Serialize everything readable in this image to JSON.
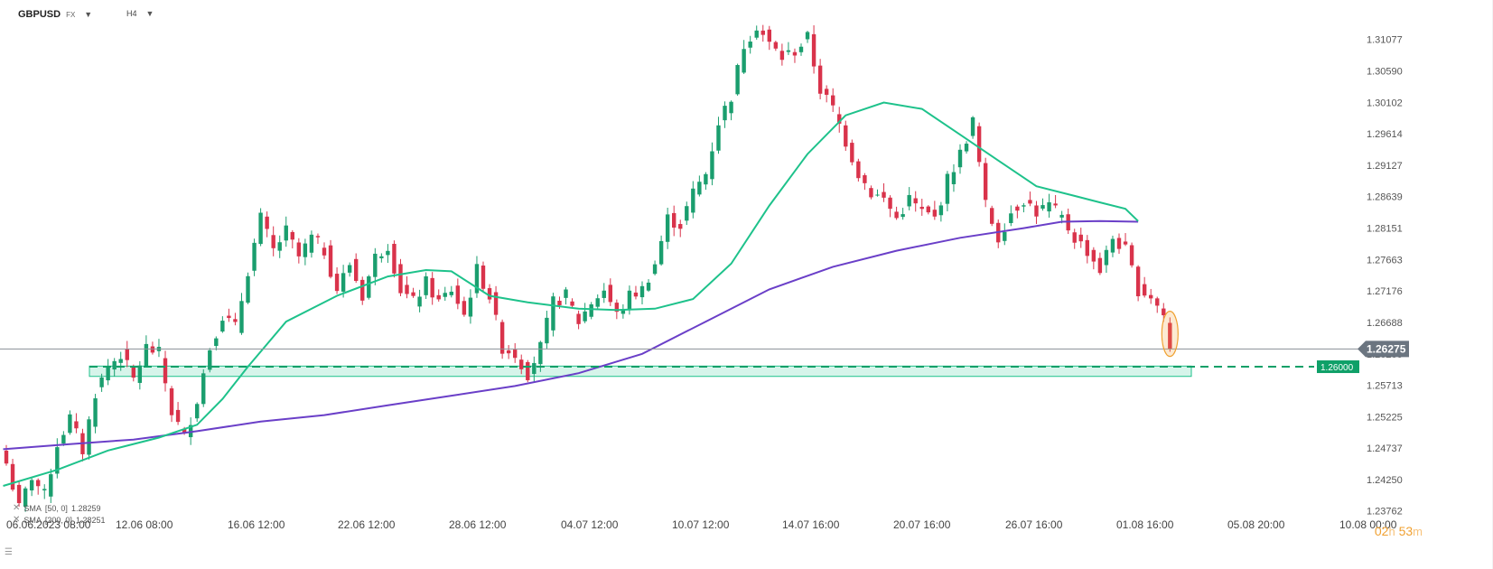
{
  "header": {
    "symbol": "GBPUSD",
    "symbol_type": "FX",
    "timeframe": "H4"
  },
  "indicators": [
    {
      "label": "SMA",
      "params": "[50, 0]",
      "value": "1.28259",
      "color": "#1ec28b"
    },
    {
      "label": "SMA",
      "params": "[200, 0]",
      "value": "1.28251",
      "color": "#6a3fc8"
    }
  ],
  "timer": {
    "hours": "02",
    "h_unit": "h",
    "minutes": "53",
    "m_unit": "m"
  },
  "colors": {
    "up": "#1a9e6e",
    "down": "#d9334b",
    "sma50": "#1ec28b",
    "sma200": "#6a3fc8",
    "zone": "#1ec28b",
    "price_tag": "#6b7580",
    "level_tag": "#0fa068",
    "highlight": "#f0a030"
  },
  "chart_data": {
    "type": "candlestick",
    "ylim": [
      1.2352,
      1.3162
    ],
    "y_ticks": [
      "1.31077",
      "1.30590",
      "1.30102",
      "1.29614",
      "1.29127",
      "1.28639",
      "1.28151",
      "1.27663",
      "1.27176",
      "1.26688",
      "1.26200",
      "1.25713",
      "1.25225",
      "1.24737",
      "1.24250",
      "1.23762"
    ],
    "x_ticks": [
      "06.06.2023  08:00",
      "12.06  08:00",
      "16.06  12:00",
      "22.06  12:00",
      "28.06  12:00",
      "04.07  12:00",
      "10.07  12:00",
      "14.07  16:00",
      "20.07  16:00",
      "26.07  16:00",
      "01.08  16:00",
      "05.08  20:00",
      "10.08  00:00"
    ],
    "current_price": "1.26275",
    "level_price": "1.26000",
    "support_zone": [
      1.2585,
      1.2601
    ],
    "sma50_value": "1.28259",
    "sma200_value": "1.28251",
    "anchors": [
      [
        0,
        1.245
      ],
      [
        2,
        1.238
      ],
      [
        4,
        1.243
      ],
      [
        6,
        1.24
      ],
      [
        8,
        1.248
      ],
      [
        10,
        1.252
      ],
      [
        12,
        1.247
      ],
      [
        14,
        1.256
      ],
      [
        16,
        1.26
      ],
      [
        18,
        1.262
      ],
      [
        20,
        1.258
      ],
      [
        22,
        1.263
      ],
      [
        24,
        1.262
      ],
      [
        26,
        1.253
      ],
      [
        28,
        1.249
      ],
      [
        30,
        1.255
      ],
      [
        32,
        1.263
      ],
      [
        34,
        1.268
      ],
      [
        36,
        1.266
      ],
      [
        38,
        1.275
      ],
      [
        40,
        1.283
      ],
      [
        42,
        1.278
      ],
      [
        44,
        1.281
      ],
      [
        46,
        1.277
      ],
      [
        48,
        1.28
      ],
      [
        50,
        1.278
      ],
      [
        52,
        1.272
      ],
      [
        54,
        1.276
      ],
      [
        56,
        1.271
      ],
      [
        58,
        1.277
      ],
      [
        60,
        1.279
      ],
      [
        62,
        1.272
      ],
      [
        64,
        1.27
      ],
      [
        66,
        1.273
      ],
      [
        68,
        1.27
      ],
      [
        70,
        1.272
      ],
      [
        72,
        1.268
      ],
      [
        74,
        1.275
      ],
      [
        76,
        1.271
      ],
      [
        78,
        1.263
      ],
      [
        80,
        1.262
      ],
      [
        82,
        1.259
      ],
      [
        84,
        1.263
      ],
      [
        86,
        1.27
      ],
      [
        88,
        1.271
      ],
      [
        90,
        1.267
      ],
      [
        92,
        1.27
      ],
      [
        94,
        1.272
      ],
      [
        96,
        1.268
      ],
      [
        98,
        1.271
      ],
      [
        100,
        1.272
      ],
      [
        102,
        1.276
      ],
      [
        104,
        1.283
      ],
      [
        106,
        1.282
      ],
      [
        108,
        1.287
      ],
      [
        110,
        1.29
      ],
      [
        112,
        1.298
      ],
      [
        114,
        1.302
      ],
      [
        116,
        1.31
      ],
      [
        118,
        1.313
      ],
      [
        120,
        1.31
      ],
      [
        122,
        1.308
      ],
      [
        124,
        1.309
      ],
      [
        126,
        1.311
      ],
      [
        128,
        1.303
      ],
      [
        130,
        1.3
      ],
      [
        132,
        1.295
      ],
      [
        134,
        1.29
      ],
      [
        136,
        1.287
      ],
      [
        138,
        1.286
      ],
      [
        140,
        1.283
      ],
      [
        142,
        1.286
      ],
      [
        144,
        1.284
      ],
      [
        146,
        1.283
      ],
      [
        148,
        1.289
      ],
      [
        150,
        1.293
      ],
      [
        152,
        1.298
      ],
      [
        154,
        1.285
      ],
      [
        156,
        1.28
      ],
      [
        158,
        1.284
      ],
      [
        160,
        1.286
      ],
      [
        162,
        1.284
      ],
      [
        164,
        1.285
      ],
      [
        166,
        1.283
      ],
      [
        168,
        1.28
      ],
      [
        170,
        1.278
      ],
      [
        172,
        1.275
      ],
      [
        174,
        1.28
      ],
      [
        176,
        1.278
      ],
      [
        178,
        1.272
      ],
      [
        180,
        1.271
      ],
      [
        182,
        1.268
      ],
      [
        183,
        1.2628
      ]
    ],
    "sma50_points": [
      [
        -0.5,
        1.2415
      ],
      [
        8,
        1.244
      ],
      [
        16,
        1.247
      ],
      [
        24,
        1.249
      ],
      [
        30,
        1.251
      ],
      [
        34,
        1.255
      ],
      [
        38,
        1.26
      ],
      [
        44,
        1.267
      ],
      [
        52,
        1.271
      ],
      [
        60,
        1.274
      ],
      [
        66,
        1.275
      ],
      [
        70,
        1.2748
      ],
      [
        76,
        1.271
      ],
      [
        82,
        1.27
      ],
      [
        90,
        1.269
      ],
      [
        96,
        1.2688
      ],
      [
        102,
        1.269
      ],
      [
        108,
        1.2705
      ],
      [
        114,
        1.276
      ],
      [
        120,
        1.285
      ],
      [
        126,
        1.293
      ],
      [
        132,
        1.299
      ],
      [
        138,
        1.301
      ],
      [
        144,
        1.3
      ],
      [
        150,
        1.296
      ],
      [
        156,
        1.292
      ],
      [
        162,
        1.288
      ],
      [
        168,
        1.2865
      ],
      [
        172,
        1.2855
      ],
      [
        176,
        1.2845
      ],
      [
        178,
        1.2826
      ]
    ],
    "sma200_points": [
      [
        -0.5,
        1.2472
      ],
      [
        10,
        1.248
      ],
      [
        20,
        1.2487
      ],
      [
        30,
        1.25
      ],
      [
        40,
        1.2515
      ],
      [
        50,
        1.2525
      ],
      [
        60,
        1.254
      ],
      [
        70,
        1.2555
      ],
      [
        80,
        1.257
      ],
      [
        90,
        1.259
      ],
      [
        100,
        1.262
      ],
      [
        110,
        1.267
      ],
      [
        120,
        1.272
      ],
      [
        130,
        1.2755
      ],
      [
        140,
        1.278
      ],
      [
        150,
        1.28
      ],
      [
        160,
        1.2815
      ],
      [
        166,
        1.2825
      ],
      [
        172,
        1.2826
      ],
      [
        178,
        1.2825
      ]
    ]
  }
}
